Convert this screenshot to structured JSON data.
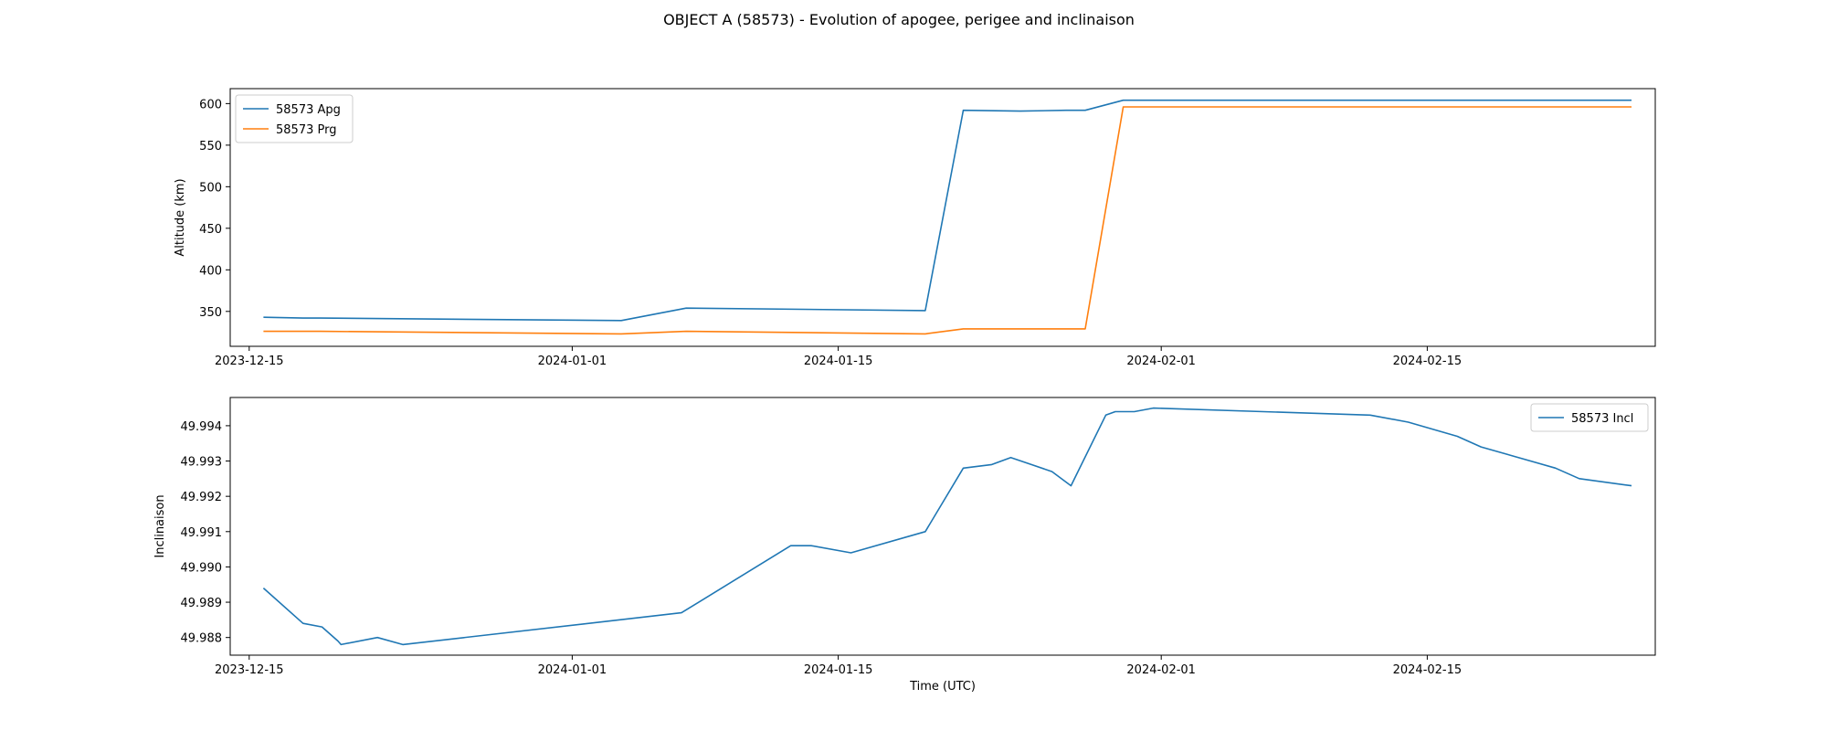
{
  "figure": {
    "title": "OBJECT A (58573) - Evolution of apogee, perigee and inclinaison"
  },
  "chart_data": [
    {
      "type": "line",
      "title": "",
      "xlabel": "",
      "ylabel": "Altitude (km)",
      "x_ticks": [
        "2023-12-15",
        "2024-01-01",
        "2024-01-15",
        "2024-02-01",
        "2024-02-15"
      ],
      "y_ticks": [
        "350",
        "400",
        "450",
        "500",
        "550",
        "600"
      ],
      "xlim": [
        "2023-12-14",
        "2024-02-27"
      ],
      "ylim": [
        308,
        618
      ],
      "grid": false,
      "legend_position": "upper-left",
      "series": [
        {
          "name": "58573 Apg",
          "color": "#1f77b4",
          "x": [
            "2023-12-15T18:00",
            "2023-12-17T20:00",
            "2023-12-18T18:00",
            "2024-01-03T14:00",
            "2024-01-07T00:00",
            "2024-01-19T14:00",
            "2024-01-21T14:00",
            "2024-01-24T14:00",
            "2024-01-27T00:00",
            "2024-01-28T00:00",
            "2024-01-30T00:00",
            "2024-02-25T18:00"
          ],
          "values": [
            343,
            342,
            342,
            339,
            354,
            351,
            592,
            591,
            592,
            592,
            604,
            604
          ]
        },
        {
          "name": "58573 Prg",
          "color": "#ff7f0e",
          "x": [
            "2023-12-15T18:00",
            "2023-12-17T20:00",
            "2023-12-18T18:00",
            "2024-01-03T14:00",
            "2024-01-07T00:00",
            "2024-01-19T14:00",
            "2024-01-21T14:00",
            "2024-01-24T14:00",
            "2024-01-27T00:00",
            "2024-01-28T00:00",
            "2024-01-30T00:00",
            "2024-02-25T18:00"
          ],
          "values": [
            326,
            326,
            326,
            323,
            326,
            323,
            329,
            329,
            329,
            329,
            596,
            596
          ]
        }
      ]
    },
    {
      "type": "line",
      "title": "",
      "xlabel": "Time (UTC)",
      "ylabel": "Inclinaison",
      "x_ticks": [
        "2023-12-15",
        "2024-01-01",
        "2024-01-15",
        "2024-02-01",
        "2024-02-15"
      ],
      "y_ticks": [
        "49.988",
        "49.989",
        "49.990",
        "49.991",
        "49.992",
        "49.993",
        "49.994"
      ],
      "xlim": [
        "2023-12-14",
        "2024-02-27"
      ],
      "ylim": [
        49.9875,
        49.9948
      ],
      "grid": false,
      "legend_position": "upper-right",
      "series": [
        {
          "name": "58573 Incl",
          "color": "#1f77b4",
          "x": [
            "2023-12-15T18:00",
            "2023-12-17T20:00",
            "2023-12-18T20:00",
            "2023-12-19T16:00",
            "2023-12-19T20:00",
            "2023-12-21T18:00",
            "2023-12-23T02:00",
            "2024-01-06T18:00",
            "2024-01-12T12:00",
            "2024-01-13T14:00",
            "2024-01-15T16:00",
            "2024-01-19T14:00",
            "2024-01-21T14:00",
            "2024-01-23T02:00",
            "2024-01-24T02:00",
            "2024-01-26T06:00",
            "2024-01-27T06:00",
            "2024-01-29T02:00",
            "2024-01-29T14:00",
            "2024-01-30T14:00",
            "2024-01-31T14:00",
            "2024-02-12T00:00",
            "2024-02-14T00:00",
            "2024-02-16T14:00",
            "2024-02-17T20:00",
            "2024-02-21T18:00",
            "2024-02-23T00:00",
            "2024-02-25T18:00"
          ],
          "values": [
            49.9894,
            49.9884,
            49.9883,
            49.9879,
            49.9878,
            49.988,
            49.9878,
            49.9887,
            49.9906,
            49.9906,
            49.9904,
            49.991,
            49.9928,
            49.9929,
            49.9931,
            49.9927,
            49.9923,
            49.9943,
            49.9944,
            49.9944,
            49.9945,
            49.9943,
            49.9941,
            49.9937,
            49.9934,
            49.9928,
            49.9925,
            49.9923
          ]
        }
      ]
    }
  ]
}
